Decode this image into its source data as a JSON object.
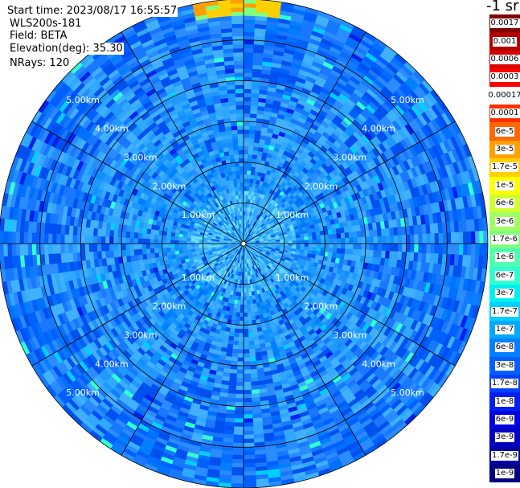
{
  "header": {
    "start_time": "Start time: 2023/08/17 16:55:57",
    "instrument": "WLS200s-181",
    "field": "Field: BETA",
    "elevation": "Elevation(deg): 35.30",
    "nrays": "NRays: 120"
  },
  "colorbar": {
    "title": "-1 sr",
    "levels": [
      {
        "label": "0.0017",
        "color": "#800000"
      },
      {
        "label": "0.001",
        "color": "#b00000"
      },
      {
        "label": "0.0006",
        "color": "#d80000"
      },
      {
        "label": "0.0003",
        "color": "#ff0000"
      },
      {
        "label": "0.00017",
        "color": "#ffffff"
      },
      {
        "label": "0.0001",
        "color": "#ff3000"
      },
      {
        "label": "6e-5",
        "color": "#ff6800"
      },
      {
        "label": "3e-5",
        "color": "#ffa000"
      },
      {
        "label": "1.7e-5",
        "color": "#ffd000"
      },
      {
        "label": "1e-5",
        "color": "#ffff00"
      },
      {
        "label": "6e-6",
        "color": "#d0ff30"
      },
      {
        "label": "3e-6",
        "color": "#a0ff60"
      },
      {
        "label": "1.7e-6",
        "color": "#80ff80"
      },
      {
        "label": "1e-6",
        "color": "#50ffb0"
      },
      {
        "label": "6e-7",
        "color": "#30ffd0"
      },
      {
        "label": "3e-7",
        "color": "#00f0f0"
      },
      {
        "label": "1.7e-7",
        "color": "#00d0ff"
      },
      {
        "label": "1e-7",
        "color": "#00a8ff"
      },
      {
        "label": "6e-8",
        "color": "#0080ff"
      },
      {
        "label": "3e-8",
        "color": "#0060ff"
      },
      {
        "label": "1.7e-8",
        "color": "#0040ff"
      },
      {
        "label": "1e-8",
        "color": "#0020f0"
      },
      {
        "label": "6e-9",
        "color": "#0000e0"
      },
      {
        "label": "3e-9",
        "color": "#0000c0"
      },
      {
        "label": "1.7e-9",
        "color": "#0000a0"
      },
      {
        "label": "1e-9",
        "color": "#000080"
      }
    ]
  },
  "chart_data": {
    "type": "heatmap",
    "subtype": "polar-ppi",
    "field": "BETA",
    "elevation_deg": 35.3,
    "nrays": 120,
    "max_range_km": 6.0,
    "range_rings_km": [
      1,
      2,
      3,
      4,
      5,
      6
    ],
    "ring_labels": [
      "1.00km",
      "2.00km",
      "3.00km",
      "4.00km",
      "5.00km"
    ],
    "spoke_angles_deg": [
      0,
      30,
      60,
      90,
      120,
      150,
      180,
      210,
      240,
      270,
      300,
      330
    ],
    "dominant_value_range": [
      "3e-8",
      "1.7e-7"
    ],
    "notable_features": [
      {
        "description": "near-range scatter",
        "range_km": [
          0,
          1.3
        ],
        "value_range": [
          "1.7e-7",
          "6e-7"
        ]
      },
      {
        "description": "far-range high values near north edge",
        "range_km": [
          5.6,
          6.0
        ],
        "value_range": [
          "1e-5",
          "3e-5"
        ]
      }
    ]
  }
}
